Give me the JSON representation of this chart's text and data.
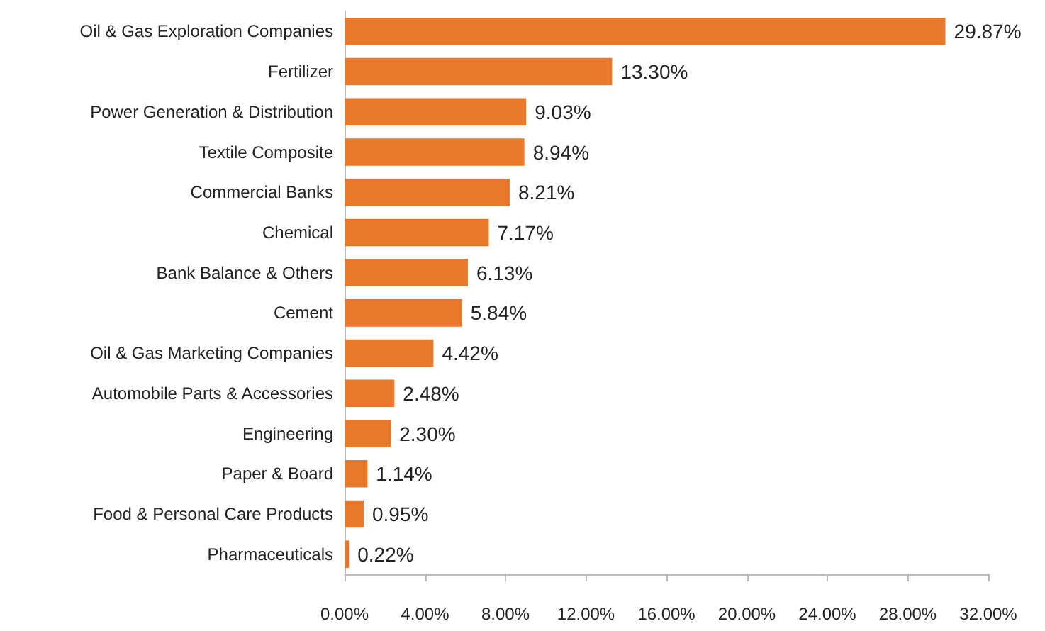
{
  "chart_data": {
    "type": "bar",
    "orientation": "horizontal",
    "categories": [
      "Oil & Gas Exploration Companies",
      "Fertilizer",
      "Power Generation & Distribution",
      "Textile Composite",
      "Commercial Banks",
      "Chemical",
      "Bank Balance & Others",
      "Cement",
      "Oil & Gas Marketing Companies",
      "Automobile Parts & Accessories",
      "Engineering",
      "Paper & Board",
      "Food & Personal Care Products",
      "Pharmaceuticals"
    ],
    "values": [
      29.87,
      13.3,
      9.03,
      8.94,
      8.21,
      7.17,
      6.13,
      5.84,
      4.42,
      2.48,
      2.3,
      1.14,
      0.95,
      0.22
    ],
    "value_labels": [
      "29.87%",
      "13.30%",
      "9.03%",
      "8.94%",
      "8.21%",
      "7.17%",
      "6.13%",
      "5.84%",
      "4.42%",
      "2.48%",
      "2.30%",
      "1.14%",
      "0.95%",
      "0.22%"
    ],
    "color": "#e8782a",
    "xlim": [
      0,
      32
    ],
    "xticks": [
      {
        "value": 0,
        "label": "0.00%"
      },
      {
        "value": 4,
        "label": "4.00%"
      },
      {
        "value": 8,
        "label": "8.00%"
      },
      {
        "value": 12,
        "label": "12.00%"
      },
      {
        "value": 16,
        "label": "16.00%"
      },
      {
        "value": 20,
        "label": "20.00%"
      },
      {
        "value": 24,
        "label": "24.00%"
      },
      {
        "value": 28,
        "label": "28.00%"
      },
      {
        "value": 32,
        "label": "32.00%"
      }
    ],
    "grid": false
  }
}
